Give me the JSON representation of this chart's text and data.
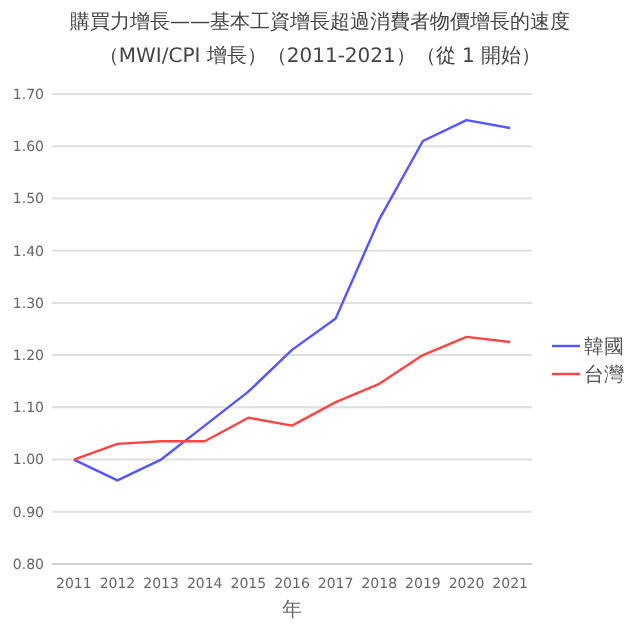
{
  "chart_data": {
    "type": "line",
    "title": "購買力增長——基本工資增長超過消費者物價增長的速度",
    "subtitle": "（MWI/CPI 增長）（2011-2021）（從 1 開始）",
    "xlabel": "年",
    "categories": [
      "2011",
      "2012",
      "2013",
      "2014",
      "2015",
      "2016",
      "2017",
      "2018",
      "2019",
      "2020",
      "2021"
    ],
    "series": [
      {
        "name": "韓國",
        "color": "#5555ff",
        "values": [
          1.0,
          0.96,
          1.0,
          1.065,
          1.13,
          1.21,
          1.27,
          1.46,
          1.61,
          1.65,
          1.635
        ]
      },
      {
        "name": "台灣",
        "color": "#ff4444",
        "values": [
          1.0,
          1.03,
          1.035,
          1.035,
          1.08,
          1.065,
          1.11,
          1.145,
          1.2,
          1.235,
          1.225
        ]
      }
    ],
    "ylim": [
      0.8,
      1.7
    ],
    "yticks": [
      {
        "value": 0.8,
        "label": "0.80"
      },
      {
        "value": 0.9,
        "label": "0.90"
      },
      {
        "value": 1.0,
        "label": "1.00"
      },
      {
        "value": 1.1,
        "label": "1.10"
      },
      {
        "value": 1.2,
        "label": "1.20"
      },
      {
        "value": 1.3,
        "label": "1.30"
      },
      {
        "value": 1.4,
        "label": "1.40"
      },
      {
        "value": 1.5,
        "label": "1.50"
      },
      {
        "value": 1.6,
        "label": "1.60"
      },
      {
        "value": 1.7,
        "label": "1.70"
      }
    ],
    "grid": "y",
    "legend": "right",
    "marker": "none",
    "line_style": "solid"
  }
}
